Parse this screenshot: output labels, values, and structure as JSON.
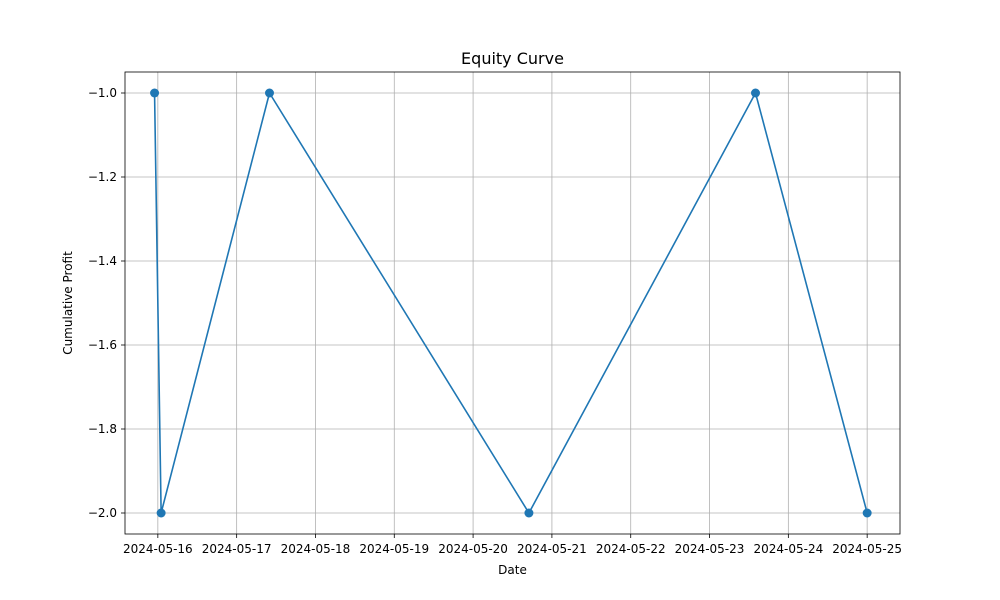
{
  "chart_data": {
    "type": "line",
    "title": "Equity Curve",
    "xlabel": "Date",
    "ylabel": "Cumulative Profit",
    "x_ticks": [
      "2024-05-16",
      "2024-05-17",
      "2024-05-18",
      "2024-05-19",
      "2024-05-20",
      "2024-05-21",
      "2024-05-22",
      "2024-05-23",
      "2024-05-24",
      "2024-05-25"
    ],
    "y_ticks": [
      "-1.0",
      "-1.2",
      "-1.4",
      "-1.6",
      "-1.8",
      "-2.0"
    ],
    "xlim": [
      "2024-05-15T14:00",
      "2024-05-25T10:00"
    ],
    "ylim": [
      -2.05,
      -0.95
    ],
    "grid": true,
    "series": [
      {
        "color": "#1f77b4",
        "marker": "circle",
        "x": [
          "2024-05-15T23:00",
          "2024-05-16T01:00",
          "2024-05-17T10:00",
          "2024-05-20T17:00",
          "2024-05-23T14:00",
          "2024-05-25T00:00"
        ],
        "y": [
          -1.0,
          -2.0,
          -1.0,
          -2.0,
          -1.0,
          -2.0
        ]
      }
    ]
  }
}
